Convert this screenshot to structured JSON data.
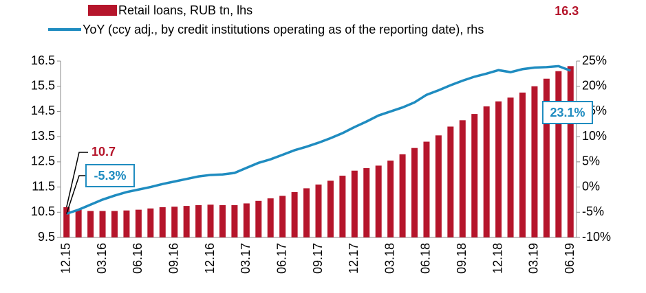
{
  "chart_data": {
    "type": "bar_line",
    "categories": [
      "12.15",
      null,
      null,
      "03.16",
      null,
      null,
      "06.16",
      null,
      null,
      "09.16",
      null,
      null,
      "12.16",
      null,
      null,
      "03.17",
      null,
      null,
      "06.17",
      null,
      null,
      "09.17",
      null,
      null,
      "12.17",
      null,
      null,
      "03.18",
      null,
      null,
      "06.18",
      null,
      null,
      "09.18",
      null,
      null,
      "12.18",
      null,
      null,
      "03.19",
      null,
      null,
      "06.19"
    ],
    "series": [
      {
        "name": "Retail loans, RUB tn, lhs",
        "type": "bar",
        "color": "#b5152b",
        "values": [
          10.7,
          10.6,
          10.55,
          10.55,
          10.55,
          10.57,
          10.6,
          10.65,
          10.7,
          10.72,
          10.75,
          10.78,
          10.8,
          10.78,
          10.78,
          10.85,
          10.95,
          11.05,
          11.15,
          11.3,
          11.45,
          11.6,
          11.75,
          11.95,
          12.15,
          12.25,
          12.35,
          12.55,
          12.8,
          13.05,
          13.3,
          13.55,
          13.9,
          14.15,
          14.4,
          14.7,
          14.9,
          15.05,
          15.25,
          15.5,
          15.8,
          16.1,
          16.3
        ]
      },
      {
        "name": "YoY (ccy adj., by credit institutions operating as of the reporting date), rhs",
        "type": "line",
        "axis": "y2",
        "color": "#1f8cc0",
        "values": [
          -5.3,
          -4.5,
          -3.5,
          -2.5,
          -1.7,
          -1.0,
          -0.5,
          0,
          0.6,
          1.1,
          1.6,
          2.1,
          2.4,
          2.5,
          2.8,
          3.8,
          4.8,
          5.5,
          6.4,
          7.3,
          8.0,
          8.8,
          9.7,
          10.7,
          11.9,
          13.0,
          14.2,
          15.0,
          15.8,
          16.8,
          18.3,
          19.2,
          20.2,
          21.1,
          21.9,
          22.5,
          23.2,
          22.8,
          23.4,
          23.7,
          23.8,
          24.0,
          23.1
        ],
        "value_labels": [
          "-5.3%",
          null,
          null,
          null,
          null,
          null,
          null,
          null,
          null,
          null,
          null,
          null,
          null,
          null,
          null,
          null,
          null,
          null,
          null,
          null,
          null,
          null,
          null,
          null,
          null,
          null,
          null,
          null,
          null,
          null,
          null,
          null,
          null,
          null,
          null,
          null,
          null,
          null,
          null,
          null,
          null,
          null,
          "23.1%"
        ]
      }
    ],
    "ylim": [
      9.5,
      16.5
    ],
    "yticks": [
      9.5,
      10.5,
      11.5,
      12.5,
      13.5,
      14.5,
      15.5,
      16.5
    ],
    "y2lim": [
      -10,
      25
    ],
    "y2ticks": [
      {
        "value": -10,
        "label": "-10%"
      },
      {
        "value": -5,
        "label": "-5%"
      },
      {
        "value": 0,
        "label": "0%"
      },
      {
        "value": 5,
        "label": "5%"
      },
      {
        "value": 10,
        "label": "10%"
      },
      {
        "value": 15,
        "label": "15%"
      },
      {
        "value": 20,
        "label": "20%"
      },
      {
        "value": 25,
        "label": "25%"
      }
    ]
  }
}
